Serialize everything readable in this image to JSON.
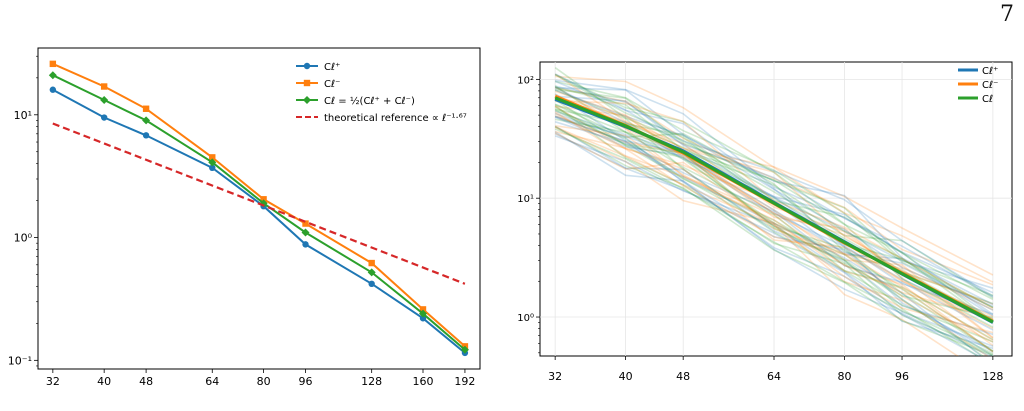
{
  "page": {
    "number": "7"
  },
  "colors": {
    "blue": "#1f77b4",
    "orange": "#ff7f0e",
    "green": "#2ca02c",
    "red": "#d62728"
  },
  "chart_data": [
    {
      "type": "line",
      "xscale": "log",
      "yscale": "log",
      "xlim": [
        30,
        205
      ],
      "ylim": [
        0.085,
        35
      ],
      "grid": false,
      "legend_position": "top-right",
      "x_ticks": [
        32,
        40,
        48,
        64,
        80,
        96,
        128,
        160,
        192
      ],
      "y_ticks": [
        {
          "value": 0.1,
          "label": "10⁻¹"
        },
        {
          "value": 1,
          "label": "10⁰"
        },
        {
          "value": 10,
          "label": "10¹"
        }
      ],
      "series": [
        {
          "name": "C_ℓ⁺",
          "legend_label": "Cℓ⁺",
          "color": "#1f77b4",
          "marker": "circle",
          "style": "solid",
          "x": [
            32,
            40,
            48,
            64,
            80,
            96,
            128,
            160,
            192
          ],
          "y": [
            16,
            9.5,
            6.8,
            3.7,
            1.8,
            0.88,
            0.42,
            0.22,
            0.115
          ]
        },
        {
          "name": "C_ℓ⁻",
          "legend_label": "Cℓ⁻",
          "color": "#ff7f0e",
          "marker": "square",
          "style": "solid",
          "x": [
            32,
            40,
            48,
            64,
            80,
            96,
            128,
            160,
            192
          ],
          "y": [
            26,
            17,
            11.2,
            4.5,
            2.05,
            1.3,
            0.62,
            0.26,
            0.13
          ]
        },
        {
          "name": "C_ℓ = ½(Cℓ⁺ + Cℓ⁻)",
          "legend_label": "Cℓ = ½(Cℓ⁺ + Cℓ⁻)",
          "color": "#2ca02c",
          "marker": "diamond",
          "style": "solid",
          "x": [
            32,
            40,
            48,
            64,
            80,
            96,
            128,
            160,
            192
          ],
          "y": [
            21,
            13.2,
            9,
            4.1,
            1.9,
            1.1,
            0.52,
            0.24,
            0.122
          ]
        },
        {
          "name": "theoretical reference ∝ ℓ^−1.67",
          "legend_label": "theoretical reference  ∝ ℓ⁻¹·⁶⁷",
          "color": "#d62728",
          "marker": "none",
          "style": "dashed",
          "x": [
            32,
            192
          ],
          "y": [
            8.5,
            0.42
          ]
        }
      ]
    },
    {
      "type": "line",
      "xscale": "log",
      "yscale": "log",
      "xlim": [
        30.5,
        136
      ],
      "ylim": [
        0.47,
        140
      ],
      "grid": true,
      "legend_position": "top-right",
      "x_ticks": [
        32,
        40,
        48,
        64,
        80,
        96,
        128
      ],
      "y_ticks": [
        {
          "value": 1,
          "label": "10⁰"
        },
        {
          "value": 10,
          "label": "10¹"
        },
        {
          "value": 100,
          "label": "10²"
        }
      ],
      "background_traces": {
        "count": 60,
        "colors": [
          "#1f77b4",
          "#ff7f0e",
          "#2ca02c"
        ],
        "opacity": 0.22
      },
      "series": [
        {
          "name": "Cℓ⁺",
          "legend_label": "Cℓ⁺",
          "color": "#1f77b4",
          "x": [
            32,
            40,
            48,
            64,
            80,
            96,
            128
          ],
          "y": [
            68,
            40,
            25,
            9.2,
            4.3,
            2.3,
            0.9
          ]
        },
        {
          "name": "Cℓ⁻",
          "legend_label": "Cℓ⁻",
          "color": "#ff7f0e",
          "x": [
            32,
            40,
            48,
            64,
            80,
            96,
            128
          ],
          "y": [
            72,
            41,
            24,
            9,
            4.2,
            2.35,
            0.92
          ]
        },
        {
          "name": "Cℓ",
          "legend_label": "Cℓ",
          "color": "#2ca02c",
          "x": [
            32,
            40,
            48,
            64,
            80,
            96,
            128
          ],
          "y": [
            70,
            40.5,
            24.5,
            9.1,
            4.25,
            2.32,
            0.91
          ]
        }
      ]
    }
  ]
}
